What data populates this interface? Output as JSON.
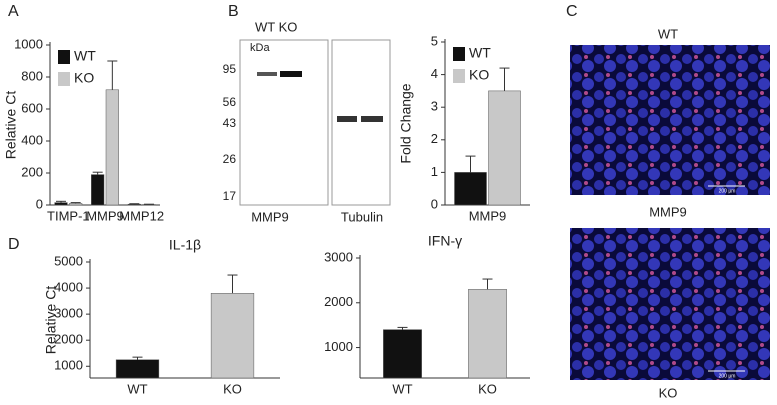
{
  "chart_data": [
    {
      "type": "bar",
      "panel": "A",
      "ylabel": "Relative Ct",
      "categories": [
        "TIMP-1",
        "MMP9",
        "MMP12"
      ],
      "series": [
        {
          "name": "WT",
          "color": "#111111",
          "values": [
            15,
            190,
            5
          ],
          "errors": [
            8,
            15,
            3
          ]
        },
        {
          "name": "KO",
          "color": "#c8c8c8",
          "values": [
            10,
            720,
            3
          ],
          "errors": [
            5,
            180,
            2
          ]
        }
      ],
      "ylim": [
        0,
        1000
      ],
      "yticks": [
        0,
        200,
        400,
        600,
        800,
        1000
      ]
    },
    {
      "type": "bar",
      "ylabel": "Fold Change",
      "categories": [
        "MMP9"
      ],
      "series": [
        {
          "name": "WT",
          "color": "#111111",
          "values": [
            1
          ],
          "errors": [
            0.5
          ]
        },
        {
          "name": "KO",
          "color": "#c8c8c8",
          "values": [
            3.5
          ],
          "errors": [
            0.7
          ]
        }
      ],
      "ylim": [
        0,
        5
      ],
      "yticks": [
        0,
        1,
        2,
        3,
        4,
        5
      ]
    },
    {
      "type": "bar",
      "panel": "D",
      "title": "IL-1β",
      "ylabel": "Relative Ct",
      "categories": [
        "WT",
        "KO"
      ],
      "colors": [
        "#111111",
        "#c8c8c8"
      ],
      "values": [
        1250,
        3800
      ],
      "errors": [
        100,
        700
      ],
      "ylim": [
        550,
        5000
      ],
      "yticks": [
        1000,
        2000,
        3000,
        4000,
        5000
      ]
    },
    {
      "type": "bar",
      "title": "IFN-γ",
      "categories": [
        "WT",
        "KO"
      ],
      "colors": [
        "#111111",
        "#c8c8c8"
      ],
      "values": [
        1400,
        2300
      ],
      "errors": [
        50,
        230
      ],
      "ylim": [
        320,
        3000
      ],
      "yticks": [
        1000,
        2000,
        3000
      ]
    }
  ],
  "blot": {
    "panel": "B",
    "lanes": "WT KO",
    "unit": "kDa",
    "markers": [
      95,
      56,
      43,
      26,
      17
    ],
    "labels": [
      "MMP9",
      "Tubulin"
    ]
  },
  "micrographs": {
    "panel": "C",
    "top": "WT",
    "middle": "MMP9",
    "bottom": "KO",
    "scale_bar": "200 µm"
  }
}
